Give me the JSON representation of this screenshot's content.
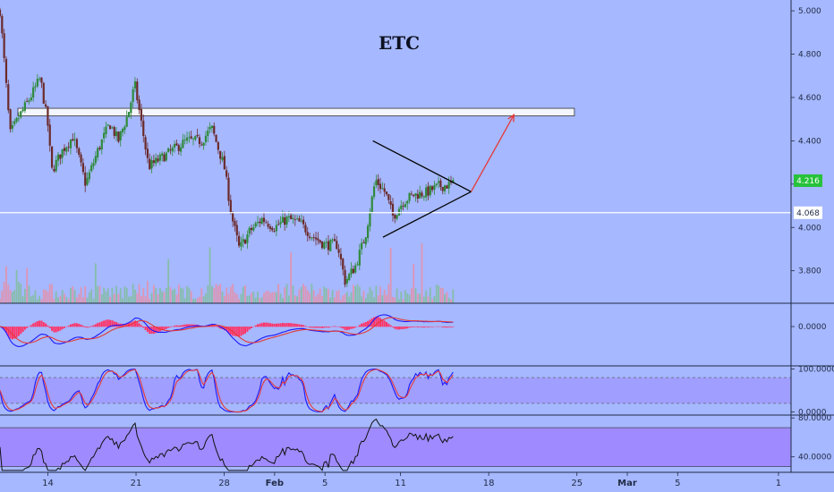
{
  "chart_data": [
    {
      "type": "candlestick",
      "title": "ETC",
      "ylim": [
        3.65,
        5.05
      ],
      "y_ticks": [
        "5.000",
        "4.800",
        "4.600",
        "4.400",
        "4.200",
        "4.000",
        "3.800"
      ],
      "y_tick_values": [
        5.0,
        4.8,
        4.6,
        4.4,
        4.2,
        4.0,
        3.8
      ],
      "x_ticks": [
        "14",
        "21",
        "28",
        "Feb",
        "5",
        "11",
        "18",
        "25",
        "Mar",
        "5",
        "1"
      ],
      "x_tick_days": [
        13,
        20,
        27,
        31,
        35,
        41,
        48,
        55,
        59,
        63,
        71
      ],
      "xlim_days": [
        9.2,
        72
      ],
      "last_data_day": 45.3,
      "price_path": [
        {
          "day": 9.2,
          "price": 5.0
        },
        {
          "day": 9.6,
          "price": 4.72
        },
        {
          "day": 10.0,
          "price": 4.43
        },
        {
          "day": 10.8,
          "price": 4.52
        },
        {
          "day": 11.6,
          "price": 4.6
        },
        {
          "day": 12.4,
          "price": 4.69
        },
        {
          "day": 13.0,
          "price": 4.47
        },
        {
          "day": 13.3,
          "price": 4.26
        },
        {
          "day": 14.2,
          "price": 4.36
        },
        {
          "day": 15.0,
          "price": 4.42
        },
        {
          "day": 16.0,
          "price": 4.2
        },
        {
          "day": 17.0,
          "price": 4.36
        },
        {
          "day": 17.9,
          "price": 4.48
        },
        {
          "day": 18.6,
          "price": 4.4
        },
        {
          "day": 19.4,
          "price": 4.53
        },
        {
          "day": 19.9,
          "price": 4.66
        },
        {
          "day": 20.6,
          "price": 4.42
        },
        {
          "day": 21.0,
          "price": 4.28
        },
        {
          "day": 22.0,
          "price": 4.32
        },
        {
          "day": 23.0,
          "price": 4.36
        },
        {
          "day": 24.0,
          "price": 4.4
        },
        {
          "day": 25.2,
          "price": 4.4
        },
        {
          "day": 26.0,
          "price": 4.46
        },
        {
          "day": 27.0,
          "price": 4.28
        },
        {
          "day": 27.6,
          "price": 4.05
        },
        {
          "day": 28.2,
          "price": 3.9
        },
        {
          "day": 29.0,
          "price": 3.98
        },
        {
          "day": 30.0,
          "price": 4.04
        },
        {
          "day": 31.0,
          "price": 4.0
        },
        {
          "day": 32.0,
          "price": 4.04
        },
        {
          "day": 33.0,
          "price": 4.02
        },
        {
          "day": 34.0,
          "price": 3.96
        },
        {
          "day": 35.0,
          "price": 3.92
        },
        {
          "day": 36.0,
          "price": 3.92
        },
        {
          "day": 36.6,
          "price": 3.75
        },
        {
          "day": 37.4,
          "price": 3.82
        },
        {
          "day": 38.2,
          "price": 3.96
        },
        {
          "day": 39.0,
          "price": 4.22
        },
        {
          "day": 39.8,
          "price": 4.16
        },
        {
          "day": 40.4,
          "price": 4.05
        },
        {
          "day": 41.2,
          "price": 4.12
        },
        {
          "day": 42.0,
          "price": 4.15
        },
        {
          "day": 43.0,
          "price": 4.16
        },
        {
          "day": 44.0,
          "price": 4.19
        },
        {
          "day": 45.3,
          "price": 4.2
        }
      ],
      "horizontal_lines": [
        {
          "price": 4.068,
          "color": "#ffffff"
        }
      ],
      "resistance_zone": {
        "price_low": 4.515,
        "price_high": 4.55,
        "day_from": 9.2,
        "day_to": 54.8
      },
      "triangle": {
        "upper": [
          {
            "day": 38.8,
            "price": 4.4
          },
          {
            "day": 46.6,
            "price": 4.165
          }
        ],
        "lower": [
          {
            "day": 39.6,
            "price": 3.955
          },
          {
            "day": 46.6,
            "price": 4.165
          }
        ]
      },
      "projection_arrow": [
        {
          "day": 46.6,
          "price": 4.165
        },
        {
          "day": 50.0,
          "price": 4.52
        }
      ],
      "price_labels": [
        {
          "text": "4.216",
          "value": 4.216,
          "bg": "#26c23a",
          "fg": "#ffffff"
        },
        {
          "text": "4.068",
          "value": 4.068,
          "bg": "#ffffff",
          "fg": "#1f2a44"
        }
      ],
      "colors": {
        "up": "#2f8a3b",
        "down": "#6b2a2a",
        "background": "#a6b8ff",
        "arrow": "#e53935",
        "volume_up": "#7bbf8c",
        "volume_down": "#f08a9a"
      }
    },
    {
      "type": "line",
      "indicator": "macd",
      "ylim": [
        -0.25,
        0.14
      ],
      "y_ticks": [
        "0.0000"
      ],
      "y_tick_values": [
        0
      ],
      "colors": {
        "macd": "#1a1aff",
        "signal": "#e53935",
        "histogram": "#ff3366"
      }
    },
    {
      "type": "line",
      "indicator": "stochastic",
      "ylim": [
        -5,
        105
      ],
      "y_ticks": [
        "100.0000",
        "0.0000"
      ],
      "y_tick_values": [
        100,
        0
      ],
      "band": [
        20,
        80
      ],
      "colors": {
        "k": "#1a1aff",
        "d": "#e53935",
        "band": "#9c8cff"
      }
    },
    {
      "type": "line",
      "indicator": "rsi",
      "ylim": [
        25,
        82
      ],
      "y_ticks": [
        "80.0000",
        "40.0000"
      ],
      "y_tick_values": [
        80,
        40
      ],
      "band": [
        30,
        70
      ],
      "colors": {
        "line": "#111111",
        "band": "#9c7bff"
      }
    }
  ]
}
